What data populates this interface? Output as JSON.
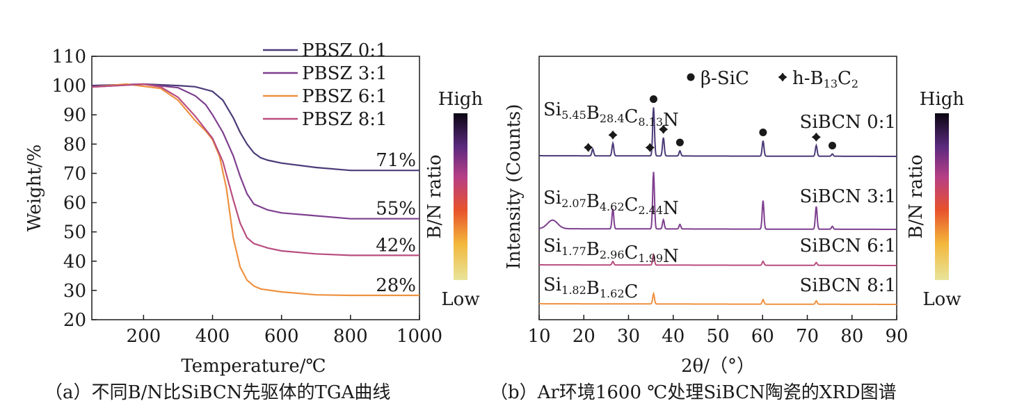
{
  "chart_data": [
    {
      "type": "line",
      "caption": "（a）不同B/N比SiBCN先驱体的TGA曲线",
      "xlabel": "Temperature/℃",
      "ylabel": "Weight/%",
      "xlim": [
        50,
        1000
      ],
      "ylim": [
        20,
        110
      ],
      "xticks": [
        200,
        400,
        600,
        800,
        1000
      ],
      "yticks": [
        20,
        30,
        40,
        50,
        60,
        70,
        80,
        90,
        100,
        110
      ],
      "grid": false,
      "legend_position": "top-center",
      "colorbar": {
        "label": "B/N ratio",
        "high": "High",
        "low": "Low"
      },
      "series": [
        {
          "name": "PBSZ 0:1",
          "color": "#4b3a78",
          "residual_label": "71%",
          "x": [
            50,
            200,
            300,
            350,
            400,
            430,
            460,
            480,
            500,
            520,
            540,
            560,
            600,
            700,
            800,
            1000
          ],
          "y": [
            100,
            100.5,
            100,
            99.6,
            98,
            95,
            89,
            84,
            80,
            77,
            75.3,
            74.5,
            73.5,
            72,
            71,
            71
          ]
        },
        {
          "name": "PBSZ 3:1",
          "color": "#7e3f8f",
          "residual_label": "55%",
          "x": [
            50,
            200,
            300,
            350,
            380,
            400,
            430,
            460,
            480,
            500,
            520,
            540,
            560,
            600,
            700,
            800,
            1000
          ],
          "y": [
            99.5,
            100.5,
            99.3,
            96.5,
            93.5,
            90,
            84,
            76,
            69,
            63,
            59.5,
            58.5,
            57.5,
            56.5,
            55.5,
            54.5,
            54.5
          ]
        },
        {
          "name": "PBSZ 6:1",
          "color": "#ee9140",
          "residual_label": "28%",
          "x": [
            50,
            150,
            250,
            300,
            350,
            380,
            400,
            420,
            440,
            460,
            480,
            500,
            520,
            540,
            600,
            700,
            800,
            1000
          ],
          "y": [
            99.5,
            100.5,
            99,
            95,
            88,
            84.5,
            81.5,
            76,
            65,
            48,
            38,
            33.5,
            31.5,
            30.5,
            29.5,
            28.5,
            28.3,
            28.3
          ]
        },
        {
          "name": "PBSZ 8:1",
          "color": "#b84d7f",
          "residual_label": "42%",
          "x": [
            50,
            200,
            250,
            300,
            350,
            400,
            430,
            460,
            480,
            500,
            520,
            560,
            600,
            700,
            800,
            1000
          ],
          "y": [
            99.5,
            100.5,
            99.5,
            96,
            89.5,
            82,
            74,
            61,
            53,
            48,
            46,
            44.5,
            43.5,
            42.5,
            42,
            42
          ]
        }
      ]
    },
    {
      "type": "line",
      "caption": "（b）Ar环境1600 ℃处理SiBCN陶瓷的XRD图谱",
      "xlabel": "2θ/（°）",
      "ylabel": "Intensity (Counts)",
      "xlim": [
        10,
        90
      ],
      "xticks": [
        10,
        20,
        30,
        40,
        50,
        60,
        70,
        80,
        90
      ],
      "grid": false,
      "markers_legend": [
        {
          "symbol": "dot",
          "label": "β-SiC"
        },
        {
          "symbol": "star",
          "label": "h-B",
          "sub": "13",
          "label2": "C",
          "sub2": "2"
        }
      ],
      "colorbar": {
        "label": "B/N ratio",
        "high": "High",
        "low": "Low"
      },
      "series": [
        {
          "name": "SiBCN 0:1",
          "color": "#4b3a78",
          "formula": [
            [
              "Si",
              "5.45"
            ],
            [
              "B",
              "28.4"
            ],
            [
              "C",
              "8.13"
            ],
            [
              "N",
              ""
            ]
          ],
          "peaks": [
            [
              22,
              1.2
            ],
            [
              26.5,
              2.2
            ],
            [
              35.6,
              8.5
            ],
            [
              37.8,
              3.2
            ],
            [
              41.5,
              0.9
            ],
            [
              60.1,
              2.7
            ],
            [
              72,
              1.9
            ],
            [
              75.6,
              0.4
            ]
          ],
          "markers": [
            {
              "symbol": "star",
              "x": 21
            },
            {
              "symbol": "star",
              "x": 26.5
            },
            {
              "symbol": "star",
              "x": 34.8
            },
            {
              "symbol": "dot",
              "x": 35.6
            },
            {
              "symbol": "star",
              "x": 37.8
            },
            {
              "symbol": "dot",
              "x": 41.5
            },
            {
              "symbol": "dot",
              "x": 60.1
            },
            {
              "symbol": "star",
              "x": 72
            },
            {
              "symbol": "dot",
              "x": 75.6
            }
          ]
        },
        {
          "name": "SiBCN 3:1",
          "color": "#7e3f8f",
          "formula": [
            [
              "Si",
              "2.07"
            ],
            [
              "B",
              "4.62"
            ],
            [
              "C",
              "2.44"
            ],
            [
              "N",
              ""
            ]
          ],
          "peaks": [
            [
              13,
              1.5
            ],
            [
              26.5,
              3.5
            ],
            [
              35.6,
              10
            ],
            [
              37.8,
              1.6
            ],
            [
              41.5,
              0.8
            ],
            [
              60.1,
              5
            ],
            [
              72,
              4
            ],
            [
              75.6,
              0.5
            ]
          ]
        },
        {
          "name": "SiBCN 6:1",
          "color": "#b84d7f",
          "formula": [
            [
              "Si",
              "1.77"
            ],
            [
              "B",
              "2.96"
            ],
            [
              "C",
              "1.99"
            ],
            [
              "N",
              ""
            ]
          ],
          "peaks": [
            [
              26.5,
              0.6
            ],
            [
              35.6,
              1.8
            ],
            [
              60.1,
              0.7
            ],
            [
              72,
              0.5
            ]
          ]
        },
        {
          "name": "SiBCN 8:1",
          "color": "#ee9140",
          "formula": [
            [
              "Si",
              "1.82"
            ],
            [
              "B",
              "1.62"
            ],
            [
              "C",
              ""
            ]
          ],
          "peaks": [
            [
              35.6,
              1.8
            ],
            [
              60.1,
              0.8
            ],
            [
              72,
              0.6
            ]
          ]
        }
      ]
    }
  ]
}
